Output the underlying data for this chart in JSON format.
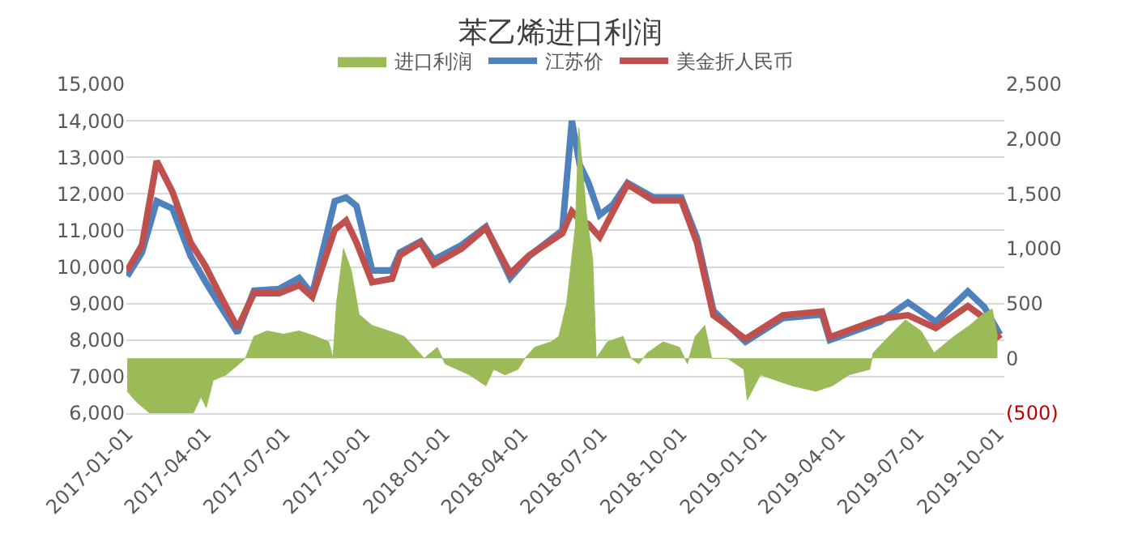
{
  "chart_data": {
    "type": "line",
    "title": "苯乙烯进口利润",
    "legend": "top",
    "grid": "y",
    "marker": "none",
    "line_style": "solid",
    "xlim": [
      "2016-12-31",
      "2019-10-08"
    ],
    "xticks": [
      "2017-01-01",
      "2017-04-01",
      "2017-07-01",
      "2017-10-01",
      "2018-01-01",
      "2018-04-01",
      "2018-07-01",
      "2018-10-01",
      "2019-01-01",
      "2019-04-01",
      "2019-07-01",
      "2019-10-01"
    ],
    "ylim": [
      6000,
      15000
    ],
    "yticks": [
      {
        "value": 6000,
        "label": "6,000"
      },
      {
        "value": 7000,
        "label": "7,000"
      },
      {
        "value": 8000,
        "label": "8,000"
      },
      {
        "value": 9000,
        "label": "9,000"
      },
      {
        "value": 10000,
        "label": "10,000"
      },
      {
        "value": 11000,
        "label": "11,000"
      },
      {
        "value": 12000,
        "label": "12,000"
      },
      {
        "value": 13000,
        "label": "13,000"
      },
      {
        "value": 14000,
        "label": "14,000"
      },
      {
        "value": 15000,
        "label": "15,000"
      }
    ],
    "y2lim": [
      -500,
      2500
    ],
    "y2ticks": [
      {
        "value": -500,
        "label": "(500)"
      },
      0,
      {
        "value": 500,
        "label": "500"
      },
      {
        "value": 1000,
        "label": "1,000"
      },
      {
        "value": 1500,
        "label": "1,500"
      },
      {
        "value": 2000,
        "label": "2,000"
      },
      {
        "value": 2500,
        "label": "2,500"
      }
    ],
    "series": [
      {
        "name": "进口利润",
        "type": "area",
        "axis": "y2",
        "color": "#9bbb59",
        "x": [
          "2017-01-01",
          "2017-01-12",
          "2017-01-27",
          "2017-03-18",
          "2017-03-27",
          "2017-04-02",
          "2017-04-10",
          "2017-04-25",
          "2017-05-10",
          "2017-05-17",
          "2017-05-27",
          "2017-06-11",
          "2017-06-30",
          "2017-07-18",
          "2017-08-06",
          "2017-08-21",
          "2017-08-26",
          "2017-08-30",
          "2017-09-07",
          "2017-09-16",
          "2017-09-25",
          "2017-10-10",
          "2017-10-29",
          "2017-11-16",
          "2017-12-09",
          "2017-12-24",
          "2018-01-02",
          "2018-01-30",
          "2018-02-18",
          "2018-02-27",
          "2018-03-12",
          "2018-03-27",
          "2018-04-04",
          "2018-04-15",
          "2018-05-04",
          "2018-05-13",
          "2018-05-22",
          "2018-06-01",
          "2018-06-05",
          "2018-06-14",
          "2018-06-21",
          "2018-06-25",
          "2018-07-08",
          "2018-07-26",
          "2018-08-04",
          "2018-08-13",
          "2018-08-23",
          "2018-09-10",
          "2018-09-29",
          "2018-10-08",
          "2018-10-17",
          "2018-10-28",
          "2018-11-05",
          "2018-11-23",
          "2018-12-12",
          "2018-12-16",
          "2018-12-31",
          "2019-01-18",
          "2019-02-06",
          "2019-03-05",
          "2019-03-24",
          "2019-04-12",
          "2019-05-06",
          "2019-05-10",
          "2019-05-28",
          "2019-06-16",
          "2019-07-04",
          "2019-07-19",
          "2019-08-11",
          "2019-08-29",
          "2019-09-13",
          "2019-09-24",
          "2019-09-30"
        ],
        "values": [
          -300,
          -400,
          -500,
          -500,
          -350,
          -450,
          -200,
          -150,
          -50,
          0,
          200,
          250,
          220,
          250,
          200,
          150,
          0,
          500,
          1000,
          800,
          400,
          300,
          250,
          200,
          0,
          100,
          -50,
          -150,
          -250,
          -100,
          -150,
          -100,
          0,
          100,
          150,
          200,
          500,
          1200,
          2100,
          1300,
          900,
          0,
          150,
          200,
          0,
          -50,
          50,
          150,
          100,
          -50,
          200,
          300,
          0,
          0,
          -100,
          -380,
          -150,
          -200,
          -250,
          -300,
          -250,
          -150,
          -100,
          50,
          200,
          350,
          250,
          50,
          200,
          300,
          400,
          450,
          200
        ]
      },
      {
        "name": "江苏价",
        "color": "#4f81bd",
        "x": [
          "2017-01-01",
          "2017-01-18",
          "2017-02-04",
          "2017-02-22",
          "2017-03-15",
          "2017-04-01",
          "2017-04-19",
          "2017-05-08",
          "2017-05-27",
          "2017-06-25",
          "2017-07-18",
          "2017-08-02",
          "2017-08-28",
          "2017-09-10",
          "2017-09-22",
          "2017-10-10",
          "2017-11-02",
          "2017-11-11",
          "2017-12-05",
          "2017-12-20",
          "2018-01-21",
          "2018-02-18",
          "2018-03-18",
          "2018-04-09",
          "2018-05-17",
          "2018-05-28",
          "2018-06-06",
          "2018-06-16",
          "2018-06-29",
          "2018-07-14",
          "2018-07-31",
          "2018-08-30",
          "2018-10-01",
          "2018-10-19",
          "2018-11-07",
          "2018-12-14",
          "2019-01-26",
          "2019-03-12",
          "2019-03-21",
          "2019-05-18",
          "2019-06-19",
          "2019-07-21",
          "2019-08-27",
          "2019-09-15",
          "2019-10-03"
        ],
        "values": [
          9750,
          10400,
          11800,
          11600,
          10300,
          9600,
          8900,
          8200,
          9350,
          9400,
          9700,
          9250,
          11800,
          11900,
          11670,
          9900,
          9900,
          10400,
          10700,
          10200,
          10600,
          11100,
          9700,
          10300,
          11000,
          14000,
          12800,
          12310,
          11420,
          11700,
          12300,
          11900,
          11900,
          10800,
          8800,
          7950,
          8600,
          8700,
          8000,
          8500,
          9030,
          8500,
          9330,
          8900,
          8150
        ]
      },
      {
        "name": "美金折人民币",
        "color": "#c0504d",
        "x": [
          "2017-01-01",
          "2017-01-18",
          "2017-02-04",
          "2017-02-22",
          "2017-03-15",
          "2017-04-01",
          "2017-04-19",
          "2017-05-08",
          "2017-05-27",
          "2017-06-25",
          "2017-07-18",
          "2017-08-02",
          "2017-08-28",
          "2017-09-10",
          "2017-09-22",
          "2017-10-10",
          "2017-11-02",
          "2017-11-11",
          "2017-12-05",
          "2017-12-20",
          "2018-01-21",
          "2018-02-18",
          "2018-03-18",
          "2018-04-09",
          "2018-05-17",
          "2018-05-28",
          "2018-06-06",
          "2018-06-16",
          "2018-06-29",
          "2018-07-14",
          "2018-07-31",
          "2018-08-30",
          "2018-10-01",
          "2018-10-19",
          "2018-11-07",
          "2018-12-14",
          "2019-01-26",
          "2019-03-12",
          "2019-03-21",
          "2019-05-18",
          "2019-06-19",
          "2019-07-21",
          "2019-08-27",
          "2019-09-15",
          "2019-10-03"
        ],
        "values": [
          9900,
          10600,
          12900,
          12060,
          10670,
          10030,
          9180,
          8330,
          9280,
          9280,
          9500,
          9180,
          11020,
          11270,
          10670,
          9580,
          9680,
          10320,
          10670,
          10070,
          10500,
          11070,
          9820,
          10320,
          10920,
          11520,
          11300,
          11170,
          10820,
          11500,
          12260,
          11820,
          11820,
          10670,
          8680,
          8030,
          8680,
          8780,
          8080,
          8580,
          8680,
          8330,
          8930,
          8600,
          8030
        ]
      }
    ]
  }
}
